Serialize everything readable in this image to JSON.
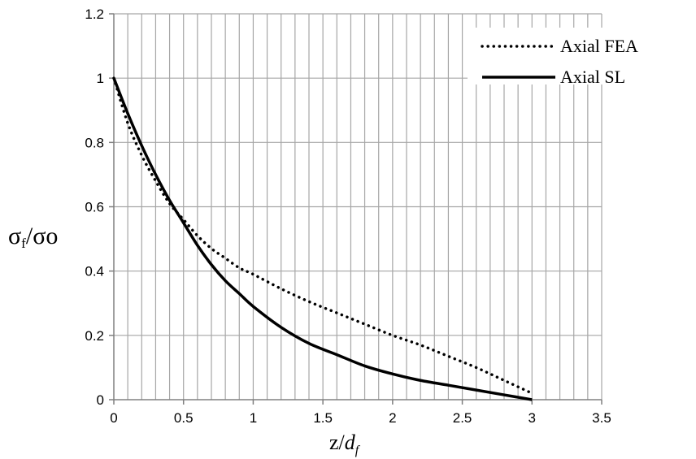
{
  "chart_data": {
    "type": "line",
    "title": "",
    "xlabel": {
      "base": "z/",
      "italic": "d",
      "sub": "f"
    },
    "ylabel": {
      "sigma1": "σ",
      "sub": "f",
      "sep": "/",
      "sigma2": "σ",
      "rest": "o"
    },
    "xlim": [
      0,
      3.5
    ],
    "ylim": [
      0,
      1.2
    ],
    "x_ticks": [
      "0",
      "0.5",
      "1",
      "1.5",
      "2",
      "2.5",
      "3",
      "3.5"
    ],
    "y_ticks": [
      "0",
      "0.2",
      "0.4",
      "0.6",
      "0.8",
      "1",
      "1.2"
    ],
    "grid": {
      "vertical": true,
      "horizontal": true,
      "vertical_step": 0.1,
      "horizontal_step": 0.2
    },
    "legend_position": "top-right",
    "series": [
      {
        "name": "Axial FEA",
        "style": "dotted",
        "color": "#000000",
        "x": [
          0,
          0.1,
          0.2,
          0.3,
          0.4,
          0.5,
          0.6,
          0.7,
          0.8,
          0.9,
          1.0,
          1.2,
          1.4,
          1.6,
          1.8,
          2.0,
          2.2,
          2.4,
          2.6,
          2.8,
          3.0
        ],
        "y": [
          1.0,
          0.86,
          0.76,
          0.68,
          0.61,
          0.56,
          0.51,
          0.47,
          0.44,
          0.41,
          0.39,
          0.345,
          0.305,
          0.27,
          0.235,
          0.2,
          0.17,
          0.135,
          0.1,
          0.06,
          0.02
        ]
      },
      {
        "name": "Axial SL",
        "style": "solid",
        "color": "#000000",
        "x": [
          0,
          0.1,
          0.2,
          0.3,
          0.4,
          0.5,
          0.6,
          0.7,
          0.8,
          0.9,
          1.0,
          1.2,
          1.4,
          1.6,
          1.8,
          2.0,
          2.2,
          2.4,
          2.6,
          2.8,
          3.0
        ],
        "y": [
          1.0,
          0.89,
          0.79,
          0.7,
          0.62,
          0.55,
          0.48,
          0.42,
          0.37,
          0.33,
          0.29,
          0.225,
          0.175,
          0.14,
          0.105,
          0.08,
          0.06,
          0.045,
          0.03,
          0.015,
          0.0
        ]
      }
    ]
  }
}
